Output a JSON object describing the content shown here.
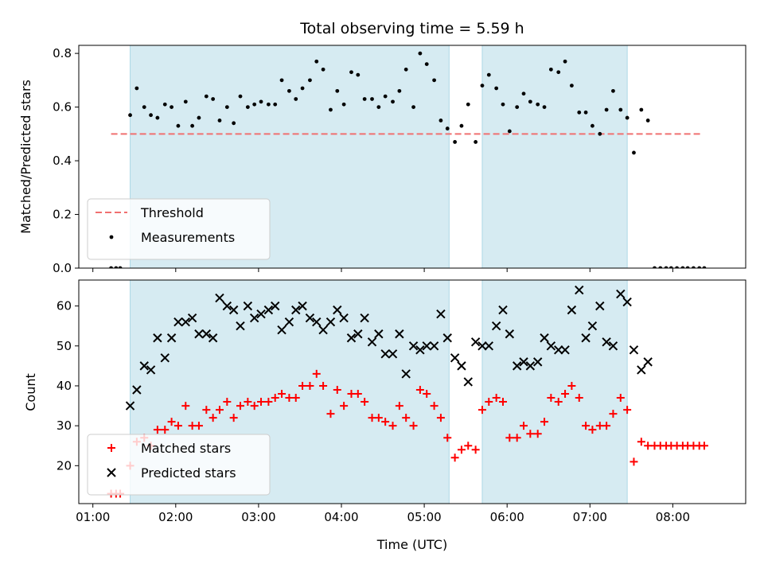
{
  "chart_data": [
    {
      "type": "scatter",
      "title": "Total observing time = 5.59 h",
      "xlabel": "",
      "ylabel": "Matched/Predicted stars",
      "xlim": [
        0.83,
        8.88
      ],
      "ylim": [
        0.0,
        0.83
      ],
      "x_ticks": [
        "01:00",
        "02:00",
        "03:00",
        "04:00",
        "05:00",
        "06:00",
        "07:00",
        "08:00"
      ],
      "x_tick_values": [
        1,
        2,
        3,
        4,
        5,
        6,
        7,
        8
      ],
      "y_ticks": [
        "0.0",
        "0.2",
        "0.4",
        "0.6",
        "0.8"
      ],
      "y_tick_values": [
        0.0,
        0.2,
        0.4,
        0.6,
        0.8
      ],
      "observing_windows": [
        [
          1.45,
          5.3
        ],
        [
          5.7,
          7.45
        ]
      ],
      "threshold": {
        "name": "Threshold",
        "value": 0.5,
        "x_range": [
          1.22,
          8.33
        ],
        "color": "#f07070"
      },
      "legend_position": "lower left",
      "series": [
        {
          "name": "Measurements",
          "color": "#000000",
          "x": [
            1.22,
            1.28,
            1.33,
            1.45,
            1.53,
            1.62,
            1.7,
            1.78,
            1.87,
            1.95,
            2.03,
            2.12,
            2.2,
            2.28,
            2.37,
            2.45,
            2.53,
            2.62,
            2.7,
            2.78,
            2.87,
            2.95,
            3.03,
            3.12,
            3.2,
            3.28,
            3.37,
            3.45,
            3.53,
            3.62,
            3.7,
            3.78,
            3.87,
            3.95,
            4.03,
            4.12,
            4.2,
            4.28,
            4.37,
            4.45,
            4.53,
            4.62,
            4.7,
            4.78,
            4.87,
            4.95,
            5.03,
            5.12,
            5.2,
            5.28,
            5.37,
            5.45,
            5.53,
            5.62,
            5.7,
            5.78,
            5.87,
            5.95,
            6.03,
            6.12,
            6.2,
            6.28,
            6.37,
            6.45,
            6.53,
            6.62,
            6.7,
            6.78,
            6.87,
            6.95,
            7.03,
            7.12,
            7.2,
            7.28,
            7.37,
            7.45,
            7.53,
            7.62,
            7.7,
            7.78,
            7.85,
            7.92,
            7.98,
            8.05,
            8.12,
            8.18,
            8.25,
            8.32,
            8.38
          ],
          "y": [
            0,
            0,
            0,
            0.57,
            0.67,
            0.6,
            0.57,
            0.56,
            0.61,
            0.6,
            0.53,
            0.62,
            0.53,
            0.56,
            0.64,
            0.63,
            0.55,
            0.6,
            0.54,
            0.64,
            0.6,
            0.61,
            0.62,
            0.61,
            0.61,
            0.7,
            0.66,
            0.63,
            0.67,
            0.7,
            0.77,
            0.74,
            0.59,
            0.66,
            0.61,
            0.73,
            0.72,
            0.63,
            0.63,
            0.6,
            0.64,
            0.62,
            0.66,
            0.74,
            0.6,
            0.8,
            0.76,
            0.7,
            0.55,
            0.52,
            0.47,
            0.53,
            0.61,
            0.47,
            0.68,
            0.72,
            0.67,
            0.61,
            0.51,
            0.6,
            0.65,
            0.62,
            0.61,
            0.6,
            0.74,
            0.73,
            0.77,
            0.68,
            0.58,
            0.58,
            0.53,
            0.5,
            0.59,
            0.66,
            0.59,
            0.56,
            0.43,
            0.59,
            0.55,
            0,
            0,
            0,
            0,
            0,
            0,
            0,
            0,
            0,
            0
          ]
        }
      ]
    },
    {
      "type": "scatter",
      "title": "",
      "xlabel": "Time (UTC)",
      "ylabel": "Count",
      "xlim": [
        0.83,
        8.88
      ],
      "ylim": [
        10.5,
        66.5
      ],
      "x_ticks": [
        "01:00",
        "02:00",
        "03:00",
        "04:00",
        "05:00",
        "06:00",
        "07:00",
        "08:00"
      ],
      "x_tick_values": [
        1,
        2,
        3,
        4,
        5,
        6,
        7,
        8
      ],
      "y_ticks": [
        "20",
        "30",
        "40",
        "50",
        "60"
      ],
      "y_tick_values": [
        20,
        30,
        40,
        50,
        60
      ],
      "observing_windows": [
        [
          1.45,
          5.3
        ],
        [
          5.7,
          7.45
        ]
      ],
      "legend_position": "lower left",
      "series": [
        {
          "name": "Matched stars",
          "marker": "plus",
          "color": "#ff0000",
          "x": [
            1.22,
            1.28,
            1.33,
            1.45,
            1.53,
            1.62,
            1.7,
            1.78,
            1.87,
            1.95,
            2.03,
            2.12,
            2.2,
            2.28,
            2.37,
            2.45,
            2.53,
            2.62,
            2.7,
            2.78,
            2.87,
            2.95,
            3.03,
            3.12,
            3.2,
            3.28,
            3.37,
            3.45,
            3.53,
            3.62,
            3.7,
            3.78,
            3.87,
            3.95,
            4.03,
            4.12,
            4.2,
            4.28,
            4.37,
            4.45,
            4.53,
            4.62,
            4.7,
            4.78,
            4.87,
            4.95,
            5.03,
            5.12,
            5.2,
            5.28,
            5.37,
            5.45,
            5.53,
            5.62,
            5.7,
            5.78,
            5.87,
            5.95,
            6.03,
            6.12,
            6.2,
            6.28,
            6.37,
            6.45,
            6.53,
            6.62,
            6.7,
            6.78,
            6.87,
            6.95,
            7.03,
            7.12,
            7.2,
            7.28,
            7.37,
            7.45,
            7.53,
            7.62,
            7.7,
            7.78,
            7.85,
            7.92,
            7.98,
            8.05,
            8.12,
            8.18,
            8.25,
            8.32,
            8.38
          ],
          "y": [
            13,
            13,
            13,
            20,
            26,
            27,
            25,
            29,
            29,
            31,
            30,
            35,
            30,
            30,
            34,
            32,
            34,
            36,
            32,
            35,
            36,
            35,
            36,
            36,
            37,
            38,
            37,
            37,
            40,
            40,
            43,
            40,
            33,
            39,
            35,
            38,
            38,
            36,
            32,
            32,
            31,
            30,
            35,
            32,
            30,
            39,
            38,
            35,
            32,
            27,
            22,
            24,
            25,
            24,
            34,
            36,
            37,
            36,
            27,
            27,
            30,
            28,
            28,
            31,
            37,
            36,
            38,
            40,
            37,
            30,
            29,
            30,
            30,
            33,
            37,
            34,
            21,
            26,
            25,
            25,
            25,
            25,
            25,
            25,
            25,
            25,
            25,
            25,
            25
          ]
        },
        {
          "name": "Predicted stars",
          "marker": "x",
          "color": "#000000",
          "x": [
            1.45,
            1.53,
            1.62,
            1.7,
            1.78,
            1.87,
            1.95,
            2.03,
            2.12,
            2.2,
            2.28,
            2.37,
            2.45,
            2.53,
            2.62,
            2.7,
            2.78,
            2.87,
            2.95,
            3.03,
            3.12,
            3.2,
            3.28,
            3.37,
            3.45,
            3.53,
            3.62,
            3.7,
            3.78,
            3.87,
            3.95,
            4.03,
            4.12,
            4.2,
            4.28,
            4.37,
            4.45,
            4.53,
            4.62,
            4.7,
            4.78,
            4.87,
            4.95,
            5.03,
            5.12,
            5.2,
            5.28,
            5.37,
            5.45,
            5.53,
            5.62,
            5.7,
            5.78,
            5.87,
            5.95,
            6.03,
            6.12,
            6.2,
            6.28,
            6.37,
            6.45,
            6.53,
            6.62,
            6.7,
            6.78,
            6.87,
            6.95,
            7.03,
            7.12,
            7.2,
            7.28,
            7.37,
            7.45,
            7.53,
            7.62,
            7.7
          ],
          "y": [
            35,
            39,
            45,
            44,
            52,
            47,
            52,
            56,
            56,
            57,
            53,
            53,
            52,
            62,
            60,
            59,
            55,
            60,
            57,
            58,
            59,
            60,
            54,
            56,
            59,
            60,
            57,
            56,
            54,
            56,
            59,
            57,
            52,
            53,
            57,
            51,
            53,
            48,
            48,
            53,
            43,
            50,
            49,
            50,
            50,
            58,
            52,
            47,
            45,
            41,
            51,
            50,
            50,
            55,
            59,
            53,
            45,
            46,
            45,
            46,
            52,
            50,
            49,
            49,
            59,
            64,
            52,
            55,
            60,
            51,
            50,
            63,
            61,
            49,
            44,
            46
          ]
        }
      ]
    }
  ]
}
